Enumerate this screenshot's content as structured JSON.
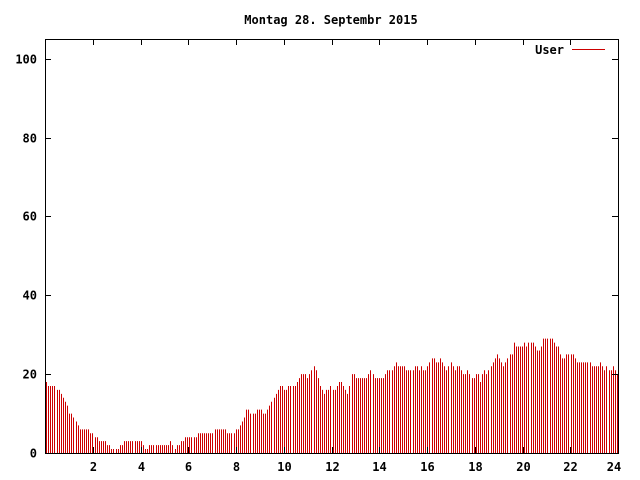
{
  "chart_data": {
    "type": "bar",
    "title": "Montag 28. Septembr 2015",
    "xlabel": "",
    "ylabel": "",
    "xlim": [
      0,
      24
    ],
    "ylim": [
      0,
      105
    ],
    "x_ticks": [
      2,
      4,
      6,
      8,
      10,
      12,
      14,
      16,
      18,
      20,
      22,
      24
    ],
    "x_tick_labels": [
      "2",
      "4",
      "6",
      "8",
      "10",
      "12",
      "14",
      "16",
      "18",
      "20",
      "22",
      "24"
    ],
    "y_ticks": [
      0,
      20,
      40,
      60,
      80,
      100
    ],
    "y_tick_labels": [
      "0",
      "20",
      "40",
      "60",
      "80",
      "100"
    ],
    "grid": false,
    "legend_position": "top-right",
    "colors": {
      "series": "#cc0000",
      "axis": "#000000",
      "background": "#ffffff"
    },
    "series": [
      {
        "name": "User",
        "values": [
          18,
          17,
          17,
          17,
          17,
          16,
          16,
          15,
          14,
          13,
          12,
          10,
          10,
          9,
          8,
          7,
          6,
          6,
          6,
          6,
          6,
          5,
          5,
          4,
          4,
          3,
          3,
          3,
          3,
          2,
          2,
          1,
          1,
          1,
          1,
          2,
          2,
          3,
          3,
          3,
          3,
          3,
          3,
          3,
          3,
          3,
          2,
          1,
          1,
          2,
          2,
          2,
          2,
          2,
          2,
          2,
          2,
          2,
          2,
          3,
          2,
          1,
          2,
          2,
          3,
          3,
          4,
          4,
          4,
          4,
          4,
          4,
          5,
          5,
          5,
          5,
          5,
          5,
          5,
          5,
          6,
          6,
          6,
          6,
          6,
          6,
          5,
          5,
          5,
          5,
          6,
          6,
          7,
          8,
          9,
          11,
          11,
          10,
          10,
          10,
          11,
          11,
          11,
          10,
          10,
          11,
          12,
          13,
          14,
          15,
          16,
          17,
          17,
          16,
          16,
          17,
          17,
          17,
          17,
          18,
          19,
          20,
          20,
          20,
          19,
          20,
          21,
          22,
          21,
          19,
          17,
          16,
          15,
          16,
          16,
          17,
          16,
          16,
          17,
          18,
          18,
          17,
          16,
          15,
          17,
          20,
          20,
          19,
          19,
          19,
          19,
          19,
          19,
          20,
          21,
          20,
          19,
          19,
          19,
          19,
          19,
          20,
          21,
          21,
          21,
          22,
          23,
          22,
          22,
          22,
          22,
          21,
          21,
          21,
          21,
          22,
          22,
          21,
          22,
          21,
          21,
          22,
          23,
          24,
          24,
          23,
          23,
          24,
          23,
          22,
          21,
          22,
          23,
          22,
          21,
          22,
          22,
          21,
          20,
          20,
          21,
          20,
          19,
          19,
          20,
          20,
          18,
          20,
          21,
          20,
          21,
          22,
          23,
          24,
          25,
          24,
          23,
          22,
          23,
          24,
          25,
          25,
          28,
          27,
          27,
          27,
          27,
          28,
          27,
          28,
          28,
          28,
          27,
          26,
          26,
          27,
          29,
          29,
          29,
          29,
          29,
          28,
          27,
          27,
          25,
          24,
          24,
          25,
          25,
          25,
          25,
          24,
          23,
          23,
          23,
          23,
          23,
          23,
          23,
          22,
          22,
          22,
          22,
          23,
          22,
          21,
          22,
          21,
          21,
          22,
          21,
          20
        ]
      }
    ]
  }
}
